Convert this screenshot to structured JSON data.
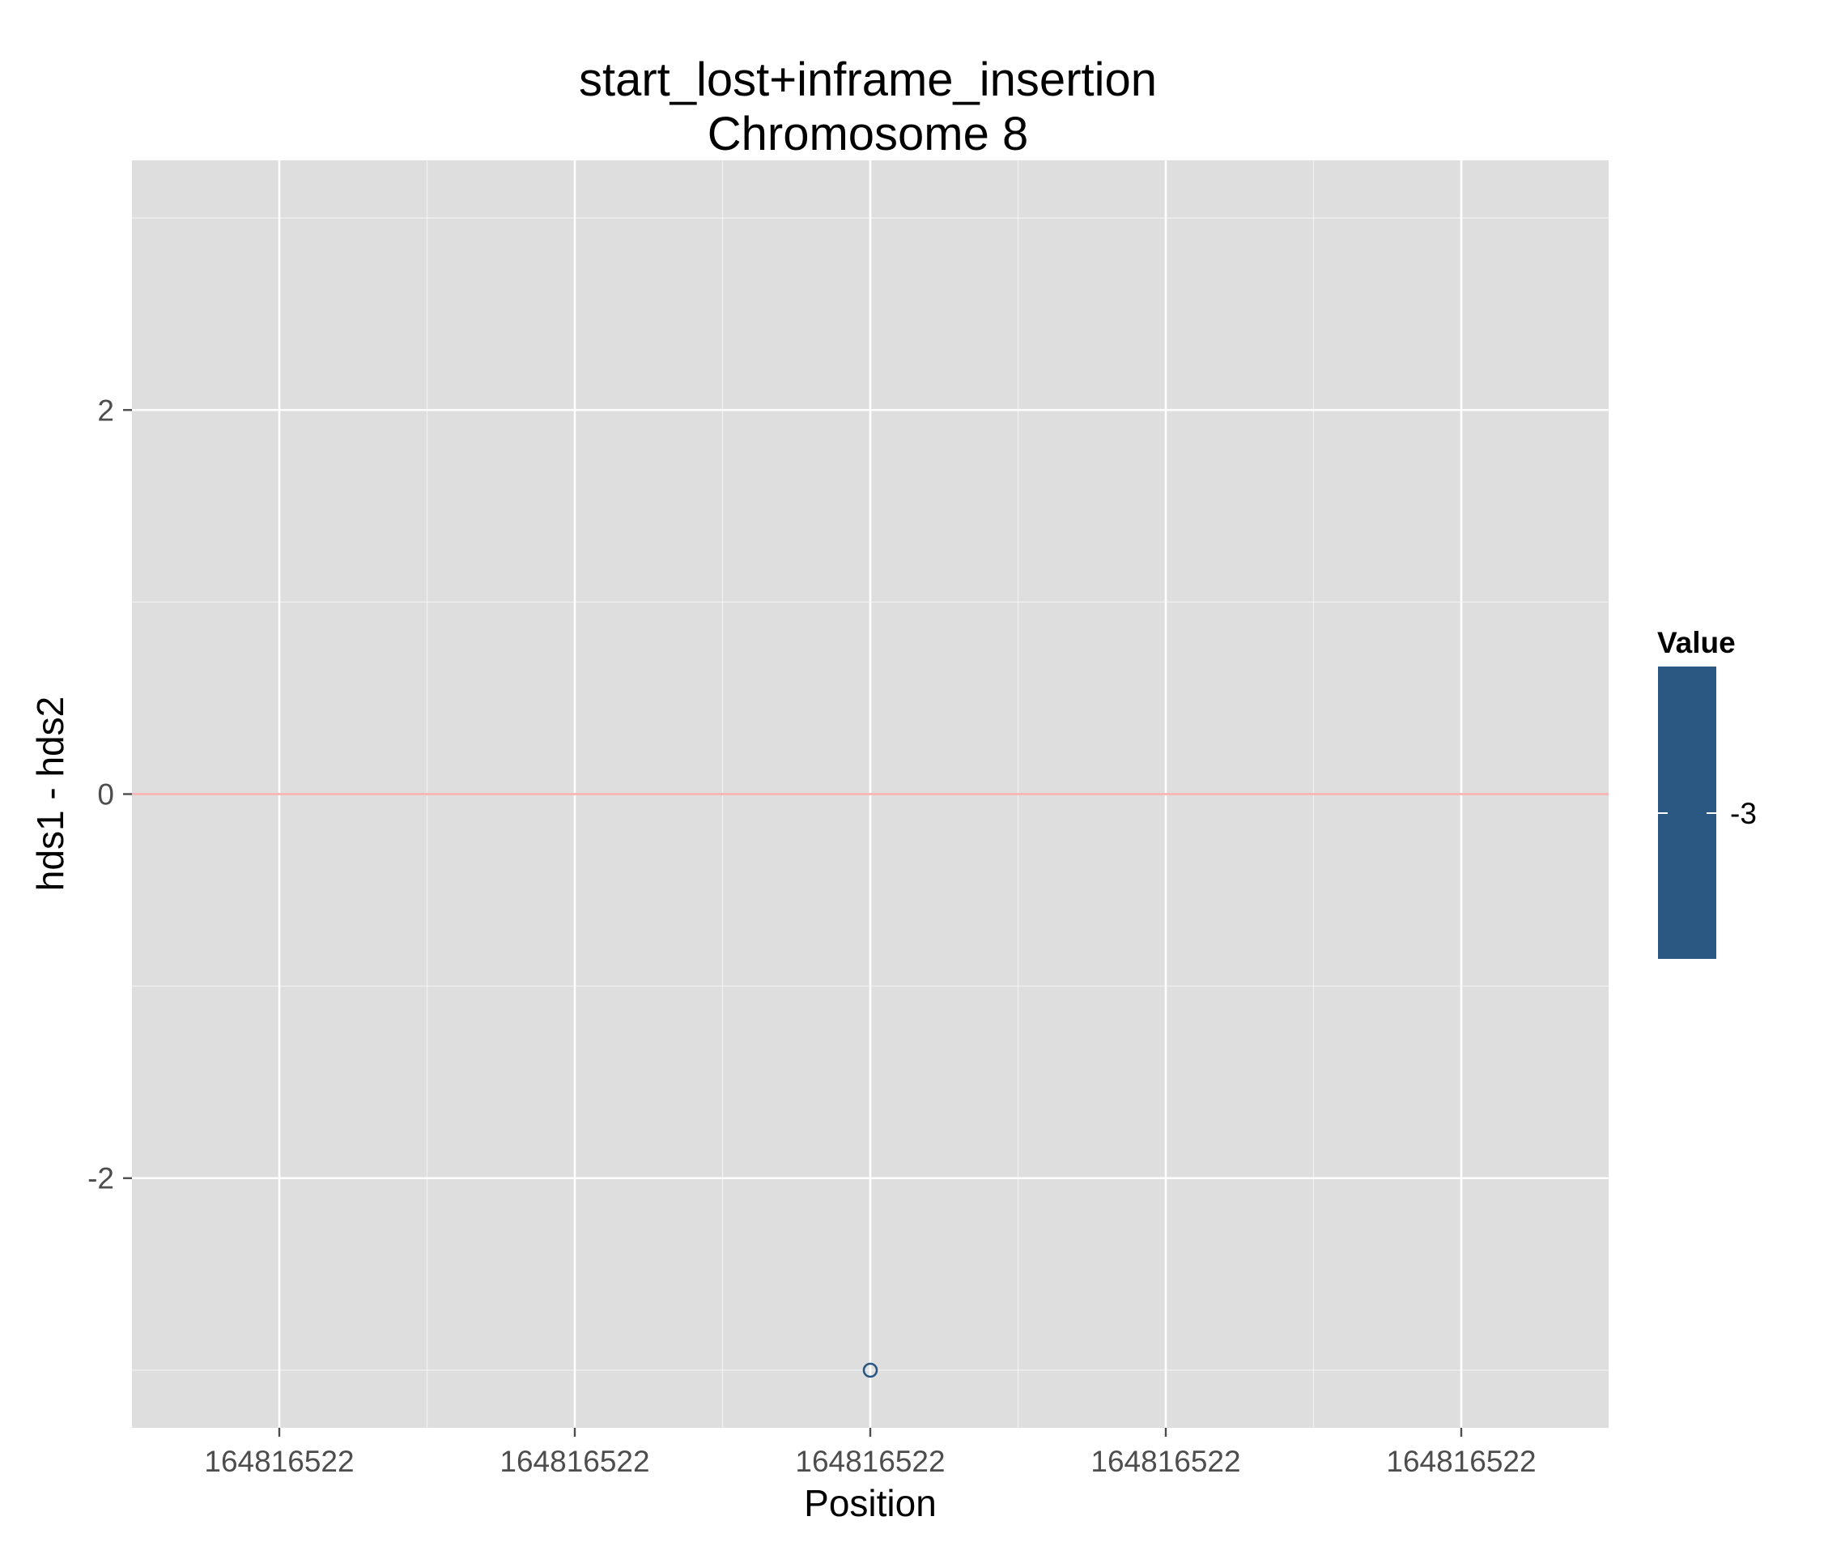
{
  "chart_data": {
    "type": "scatter",
    "title": "start_lost+inframe_insertion",
    "subtitle": "Chromosome 8",
    "xlabel": "Position",
    "ylabel": "hds1 - hds2",
    "x_ticks": [
      "164816522",
      "164816522",
      "164816522",
      "164816522",
      "164816522"
    ],
    "y_ticks": [
      -2,
      0,
      2
    ],
    "ylim": [
      -3.3,
      3.3
    ],
    "points": [
      {
        "x": 164816522,
        "y": -3,
        "value": -3
      }
    ],
    "reference_line": {
      "y": 0,
      "color": "#f8b8b8"
    },
    "legend": {
      "title": "Value",
      "labels": [
        "-3"
      ],
      "placement": "right"
    },
    "colors": {
      "panel": "#dedede",
      "grid": "#ffffff",
      "point": "#2b5783",
      "legend_bar": "#2b5783"
    },
    "grid": true
  }
}
